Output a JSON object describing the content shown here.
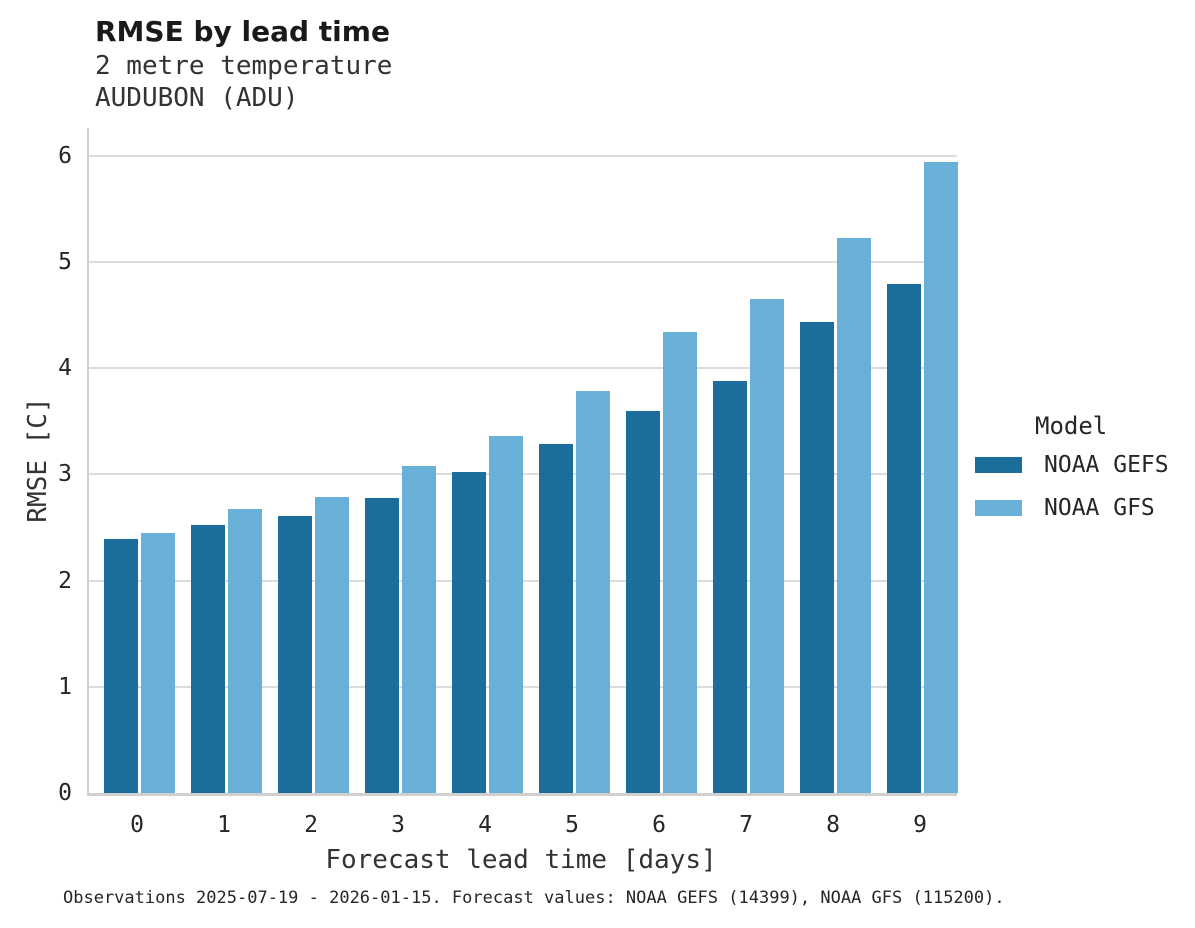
{
  "header": {
    "title": "RMSE by lead time",
    "subtitle": "2 metre temperature",
    "station": "AUDUBON (ADU)"
  },
  "chart_data": {
    "type": "bar",
    "title": "RMSE by lead time",
    "subtitle": "2 metre temperature",
    "station": "AUDUBON (ADU)",
    "categories": [
      "0",
      "1",
      "2",
      "3",
      "4",
      "5",
      "6",
      "7",
      "8",
      "9"
    ],
    "series": [
      {
        "name": "NOAA GEFS",
        "color": "#1b6e9c",
        "values": [
          2.39,
          2.52,
          2.61,
          2.78,
          3.02,
          3.29,
          3.6,
          3.88,
          4.43,
          4.79
        ]
      },
      {
        "name": "NOAA GFS",
        "color": "#69b0d8",
        "values": [
          2.45,
          2.67,
          2.79,
          3.08,
          3.36,
          3.78,
          4.34,
          4.65,
          5.22,
          5.94
        ]
      }
    ],
    "xlabel": "Forecast lead time [days]",
    "ylabel": "RMSE [C]",
    "ylim": [
      0,
      6.26
    ],
    "yticks": [
      0,
      1,
      2,
      3,
      4,
      5,
      6
    ],
    "grid": true,
    "legend_title": "Model",
    "legend_position": "right",
    "grid_color": "#dcdcdc",
    "spine_color": "#d0d0d0"
  },
  "footer": {
    "text": "Observations 2025-07-19 - 2026-01-15. Forecast values: NOAA GEFS (14399), NOAA GFS (115200)."
  }
}
